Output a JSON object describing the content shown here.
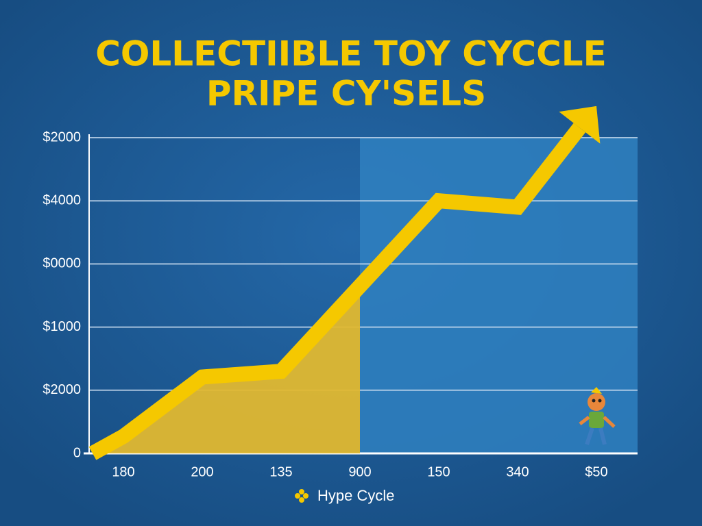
{
  "chart_data": {
    "type": "line",
    "title": "COLLECTIIBLE TOY CYCCLE",
    "subtitle": "PRIPE CY'SELS",
    "categories": [
      "180",
      "200",
      "135",
      "900",
      "150",
      "340",
      "$50"
    ],
    "series": [
      {
        "name": "Hype Cycle",
        "color": "#f5c800",
        "values": [
          0.27,
          1.21,
          1.3,
          2.65,
          4.0,
          3.9,
          5.5
        ]
      }
    ],
    "ylim": [
      0,
      5
    ],
    "yticks": [
      {
        "value": 0,
        "label": "0"
      },
      {
        "value": 1,
        "label": "$2000"
      },
      {
        "value": 2,
        "label": "$1000"
      },
      {
        "value": 3,
        "label": "$0000"
      },
      {
        "value": 4,
        "label": "$4000"
      },
      {
        "value": 5,
        "label": "$2000"
      }
    ],
    "grid": true
  }
}
